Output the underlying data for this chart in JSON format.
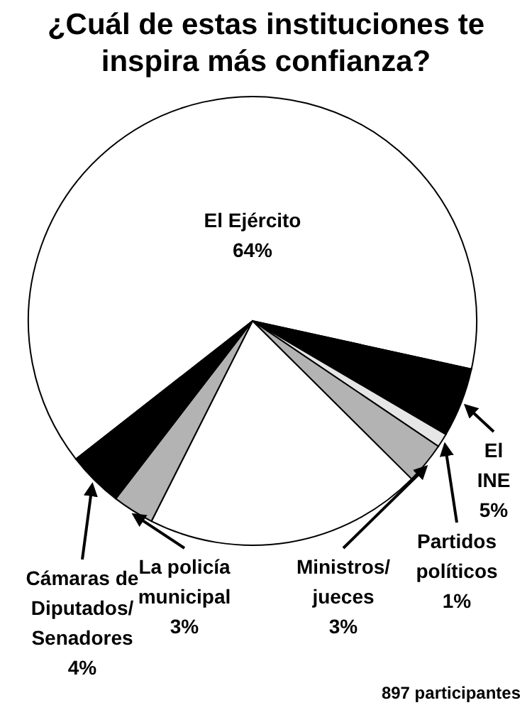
{
  "chart_data": {
    "type": "pie",
    "title": "¿Cuál de estas instituciones te inspira más confianza?",
    "categories": [
      "El Ejército",
      "El INE",
      "Partidos políticos",
      "Ministros/ jueces",
      null,
      "La policía municipal",
      "Cámaras de Diputados/ Senadores"
    ],
    "values": [
      64,
      5,
      1,
      3,
      20,
      3,
      4
    ],
    "value_labels": [
      "64%",
      "5%",
      "1%",
      "3%",
      null,
      "3%",
      "4%"
    ],
    "colors": [
      "#ffffff",
      "#000000",
      "#e6e6e6",
      "#b3b3b3",
      "#ffffff",
      "#b3b3b3",
      "#000000"
    ],
    "annotations": [
      "897 participantes"
    ]
  }
}
